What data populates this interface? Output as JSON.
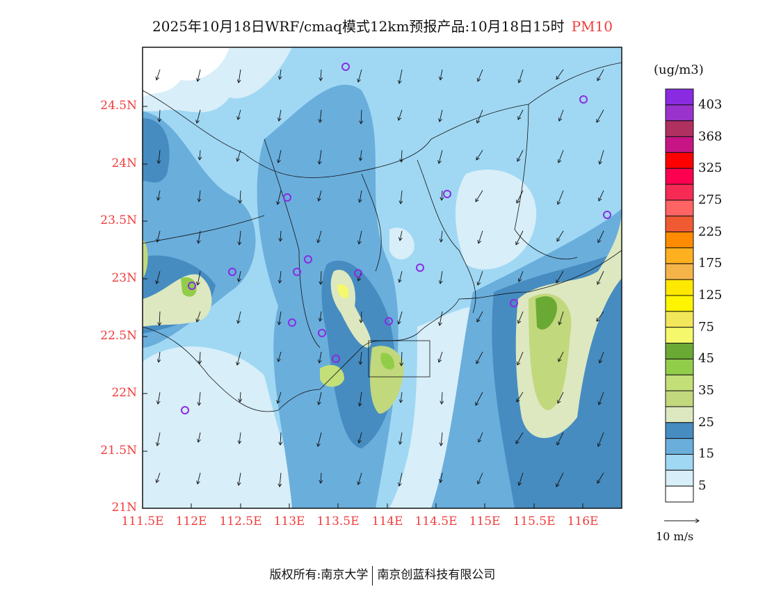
{
  "title": {
    "main": "2025年10月18日WRF/cmaq模式12km预报产品:10月18日15时",
    "pollutant": "PM10"
  },
  "axes": {
    "lat_labels": [
      "24.5N",
      "24N",
      "23.5N",
      "23N",
      "22.5N",
      "22N",
      "21.5N",
      "21N"
    ],
    "lon_labels": [
      "111.5E",
      "112E",
      "112.5E",
      "113E",
      "113.5E",
      "114E",
      "114.5E",
      "115E",
      "115.5E",
      "116E"
    ]
  },
  "legend": {
    "unit": "(ug/m3)",
    "labels": [
      "403",
      "368",
      "325",
      "275",
      "225",
      "175",
      "125",
      "75",
      "45",
      "35",
      "25",
      "15",
      "5"
    ],
    "colors": [
      "#8a2be2",
      "#9a32cd",
      "#b03060",
      "#c71585",
      "#ff0000",
      "#ff0050",
      "#f52a55",
      "#ff6464",
      "#f05a32",
      "#ff8c00",
      "#ffb020",
      "#f5b44a",
      "#ffe800",
      "#fff500",
      "#f2e65a",
      "#f4f86a",
      "#6aaa34",
      "#92cd4a",
      "#c3df78",
      "#c2d87c",
      "#dde8c0",
      "#468cc0",
      "#6aaedc",
      "#a0d8f4",
      "#d8eef8",
      "#ffffff"
    ]
  },
  "wind_scale": "10 m/s",
  "footer": {
    "left": "版权所有:南京大学",
    "right": "南京创蓝科技有限公司"
  }
}
